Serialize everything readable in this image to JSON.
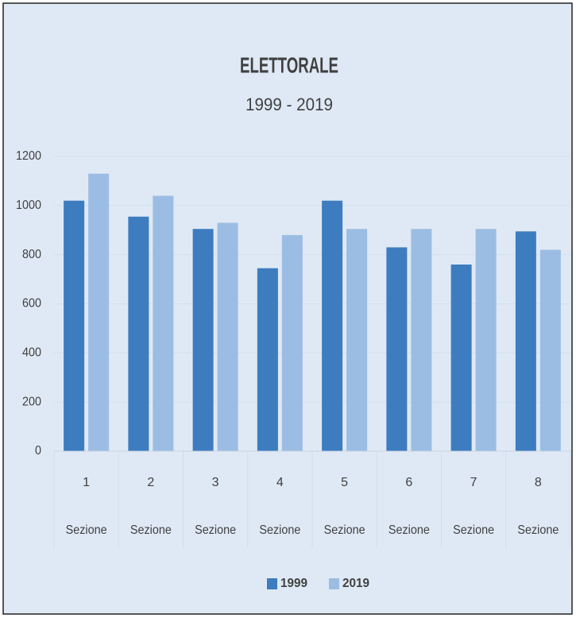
{
  "chart_data": {
    "type": "bar",
    "title": "ELETTORALE",
    "subtitle": "1999 - 2019",
    "categories": [
      "1",
      "2",
      "3",
      "4",
      "5",
      "6",
      "7",
      "8"
    ],
    "category_sublabels": [
      "Sezione",
      "Sezione",
      "Sezione",
      "Sezione",
      "Sezione",
      "Sezione",
      "Sezione",
      "Sezione"
    ],
    "series": [
      {
        "name": "1999",
        "color": "#3d7cbf",
        "values": [
          1020,
          955,
          905,
          745,
          1020,
          830,
          760,
          895
        ]
      },
      {
        "name": "2019",
        "color": "#9cbde3",
        "values": [
          1130,
          1040,
          930,
          880,
          905,
          905,
          905,
          820
        ]
      }
    ],
    "ylim": [
      0,
      1200
    ],
    "yticks": [
      0,
      200,
      400,
      600,
      800,
      1000,
      1200
    ],
    "grid": true,
    "legend": "bottom"
  }
}
